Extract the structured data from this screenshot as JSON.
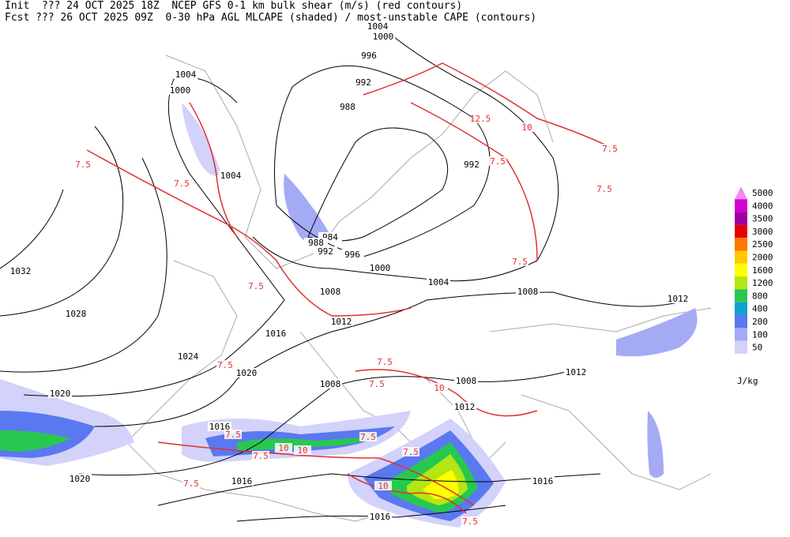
{
  "header": [
    "Init  ??? 24 OCT 2025 18Z  NCEP GFS 0-1 km bulk shear (m/s) (red contours)",
    "Fcst ??? 26 OCT 2025 09Z  0-30 hPa AGL MLCAPE (shaded) / most-unstable CAPE (contours)"
  ],
  "legend": {
    "levels": [
      {
        "label": "5000",
        "color": "#f08cf0"
      },
      {
        "label": "4000",
        "color": "#d200d2"
      },
      {
        "label": "3500",
        "color": "#a000a0"
      },
      {
        "label": "3000",
        "color": "#e60000"
      },
      {
        "label": "2500",
        "color": "#ff7800"
      },
      {
        "label": "2000",
        "color": "#ffc800"
      },
      {
        "label": "1600",
        "color": "#ffff00"
      },
      {
        "label": "1200",
        "color": "#b4e614"
      },
      {
        "label": "800",
        "color": "#28c850"
      },
      {
        "label": "400",
        "color": "#14a0d2"
      },
      {
        "label": "200",
        "color": "#5a78f0"
      },
      {
        "label": "100",
        "color": "#a5aaf5"
      },
      {
        "label": "50",
        "color": "#d2d2fa"
      }
    ],
    "units": "J/kg"
  },
  "isobar_labels": [
    "1004",
    "1000",
    "996",
    "992",
    "988",
    "1004",
    "1000",
    "1004",
    "984",
    "988",
    "992",
    "996",
    "1000",
    "1004",
    "1008",
    "1012",
    "1016",
    "1020",
    "1024",
    "1028",
    "1032",
    "1020",
    "1016",
    "1020",
    "1016",
    "1016",
    "1016",
    "1008",
    "1008",
    "1012",
    "1012",
    "1008",
    "1012",
    "992"
  ],
  "shear_labels": [
    "7.5",
    "7.5",
    "7.5",
    "7.5",
    "7.5",
    "7.5",
    "7.5",
    "7.5",
    "7.5",
    "7.5",
    "7.5",
    "7.5",
    "7.5",
    "7.5",
    "7.5",
    "7.5",
    "10",
    "10",
    "10",
    "10",
    "10",
    "12.5"
  ]
}
